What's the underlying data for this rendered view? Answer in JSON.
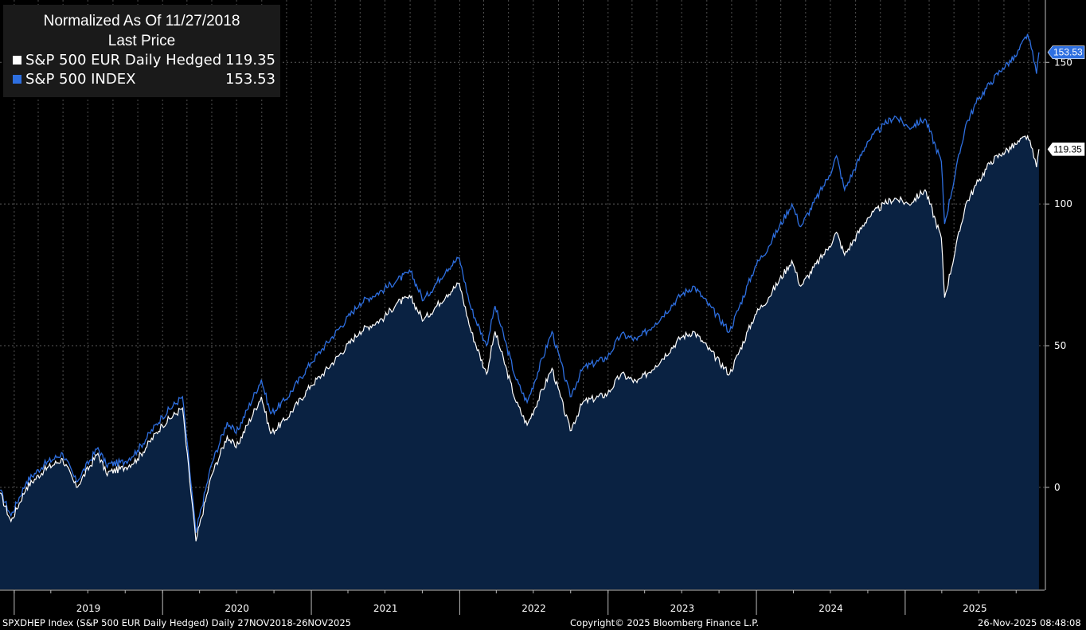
{
  "legend": {
    "title_line1": "Normalized As Of 11/27/2018",
    "title_line2": "Last Price"
  },
  "footer": {
    "left": "SPXDHEP Index (S&P 500 EUR Daily Hedged) Daily 27NOV2018-26NOV2025",
    "center": "Copyright© 2025 Bloomberg Finance L.P.",
    "right": "26-Nov-2025 08:48:08"
  },
  "colors": {
    "background": "#000000",
    "area_fill": "#0a2242",
    "hedged_line": "#ffffff",
    "index_line": "#2e6fe0",
    "grid": "#5a5a5a"
  },
  "chart_data": {
    "type": "line",
    "x_axis_labels": [
      "2019",
      "2020",
      "2021",
      "2022",
      "2023",
      "2024",
      "2025"
    ],
    "y_ticks": [
      0,
      50,
      100,
      150
    ],
    "ylim": [
      -36,
      172
    ],
    "xlim": [
      "2018-11-27",
      "2025-12-10"
    ],
    "grid": true,
    "legend_position": "top-left",
    "series": [
      {
        "name": "S&P 500 EUR Daily Hedged",
        "last_value": "119.35",
        "last": 119.35,
        "x": [
          "2018-11-27",
          "2018-12-24",
          "2019-01-31",
          "2019-03-15",
          "2019-04-30",
          "2019-06-03",
          "2019-07-26",
          "2019-08-15",
          "2019-09-30",
          "2019-10-31",
          "2019-12-31",
          "2020-02-19",
          "2020-03-23",
          "2020-04-30",
          "2020-06-08",
          "2020-06-30",
          "2020-08-31",
          "2020-09-23",
          "2020-10-30",
          "2020-12-31",
          "2021-01-29",
          "2021-04-30",
          "2021-06-30",
          "2021-07-30",
          "2021-09-02",
          "2021-10-04",
          "2021-11-30",
          "2021-12-31",
          "2022-01-27",
          "2022-03-08",
          "2022-03-29",
          "2022-05-20",
          "2022-06-16",
          "2022-08-16",
          "2022-09-30",
          "2022-10-31",
          "2022-12-31",
          "2023-02-02",
          "2023-03-13",
          "2023-04-28",
          "2023-06-30",
          "2023-07-31",
          "2023-10-27",
          "2023-12-29",
          "2024-01-31",
          "2024-03-28",
          "2024-04-19",
          "2024-06-28",
          "2024-07-16",
          "2024-08-05",
          "2024-09-30",
          "2024-11-11",
          "2024-12-06",
          "2025-01-10",
          "2025-02-19",
          "2025-03-31",
          "2025-04-08",
          "2025-05-30",
          "2025-06-30",
          "2025-07-31",
          "2025-08-29",
          "2025-09-30",
          "2025-10-29",
          "2025-11-07",
          "2025-11-20",
          "2025-11-26"
        ],
        "y": [
          -2,
          -12,
          0,
          6,
          10,
          0,
          12,
          5,
          7,
          10,
          22,
          28,
          -19,
          4,
          18,
          14,
          32,
          19,
          24,
          36,
          40,
          55,
          60,
          65,
          67,
          59,
          68,
          72,
          56,
          40,
          55,
          30,
          22,
          42,
          20,
          30,
          33,
          40,
          37,
          43,
          53,
          55,
          40,
          61,
          67,
          80,
          71,
          85,
          90,
          82,
          95,
          100,
          102,
          100,
          105,
          88,
          67,
          100,
          108,
          115,
          118,
          121,
          124,
          120,
          113,
          119.35
        ]
      },
      {
        "name": "S&P 500 INDEX",
        "last_value": "153.53",
        "last": 153.53,
        "x": [
          "2018-11-27",
          "2018-12-24",
          "2019-01-31",
          "2019-03-15",
          "2019-04-30",
          "2019-06-03",
          "2019-07-26",
          "2019-08-15",
          "2019-09-30",
          "2019-10-31",
          "2019-12-31",
          "2020-02-19",
          "2020-03-23",
          "2020-04-30",
          "2020-06-08",
          "2020-06-30",
          "2020-08-31",
          "2020-09-23",
          "2020-10-30",
          "2020-12-31",
          "2021-01-29",
          "2021-04-30",
          "2021-06-30",
          "2021-07-30",
          "2021-09-02",
          "2021-10-04",
          "2021-11-30",
          "2021-12-31",
          "2022-01-27",
          "2022-03-08",
          "2022-03-29",
          "2022-05-20",
          "2022-06-16",
          "2022-08-16",
          "2022-09-30",
          "2022-10-31",
          "2022-12-31",
          "2023-02-02",
          "2023-03-13",
          "2023-04-28",
          "2023-06-30",
          "2023-07-31",
          "2023-10-27",
          "2023-12-29",
          "2024-01-31",
          "2024-03-28",
          "2024-04-19",
          "2024-06-28",
          "2024-07-16",
          "2024-08-05",
          "2024-09-30",
          "2024-11-11",
          "2024-12-06",
          "2025-01-10",
          "2025-02-19",
          "2025-03-31",
          "2025-04-08",
          "2025-05-30",
          "2025-06-30",
          "2025-07-31",
          "2025-08-29",
          "2025-09-30",
          "2025-10-29",
          "2025-11-07",
          "2025-11-20",
          "2025-11-26"
        ],
        "y": [
          -1,
          -10,
          2,
          8,
          12,
          2,
          14,
          8,
          9,
          13,
          25,
          32,
          -16,
          8,
          23,
          19,
          38,
          26,
          31,
          44,
          49,
          65,
          70,
          73,
          76,
          66,
          77,
          81,
          64,
          50,
          64,
          38,
          30,
          55,
          32,
          42,
          46,
          54,
          52,
          58,
          68,
          71,
          55,
          78,
          85,
          100,
          92,
          110,
          117,
          105,
          122,
          128,
          131,
          127,
          130,
          115,
          93,
          128,
          137,
          143,
          148,
          152,
          160,
          155,
          146,
          153.53
        ]
      }
    ]
  }
}
